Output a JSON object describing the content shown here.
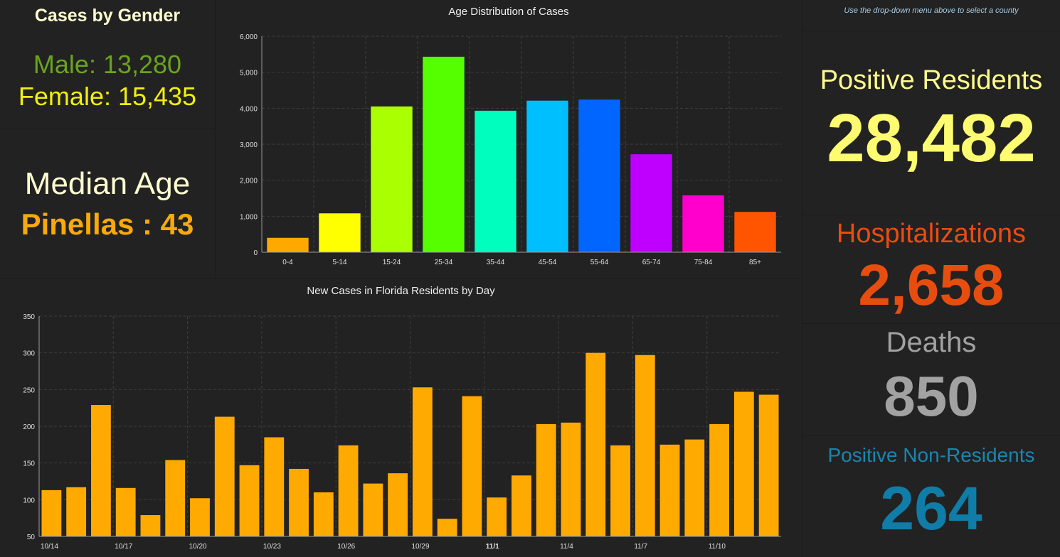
{
  "gender": {
    "title": "Cases by Gender",
    "male": "Male: 13,280",
    "female": "Female: 15,435"
  },
  "median": {
    "label": "Median Age",
    "value": "Pinellas : 43"
  },
  "age_chart": {
    "title": "Age Distribution of Cases"
  },
  "daily_chart": {
    "title": "New Cases in Florida Residents by Day"
  },
  "county_note": "Use the drop-down menu above to select a county",
  "positive": {
    "label": "Positive Residents",
    "value": "28,482"
  },
  "hospitalizations": {
    "label": "Hospitalizations",
    "value": "2,658"
  },
  "deaths": {
    "label": "Deaths",
    "value": "850"
  },
  "non_residents": {
    "label": "Positive Non-Residents",
    "value": "264"
  },
  "colors": {
    "age_bars": [
      "#ffa800",
      "#ffff00",
      "#aaff00",
      "#55ff00",
      "#00ffbf",
      "#00bfff",
      "#0066ff",
      "#bf00ff",
      "#ff00cc",
      "#ff5500"
    ],
    "daily_bars": "#ffaa00",
    "grid": "#3d3d3d",
    "axis_text": "#e0e0e0"
  },
  "chart_data": [
    {
      "type": "bar",
      "title": "Age Distribution of Cases",
      "categories": [
        "0-4",
        "5-14",
        "15-24",
        "25-34",
        "35-44",
        "45-54",
        "55-64",
        "65-74",
        "75-84",
        "85+"
      ],
      "values": [
        400,
        1080,
        4050,
        5430,
        3930,
        4210,
        4240,
        2720,
        1580,
        1120
      ],
      "ylim": [
        0,
        6000
      ],
      "yticks": [
        "0",
        "1,000",
        "2,000",
        "3,000",
        "4,000",
        "5,000",
        "6,000"
      ],
      "grid": true
    },
    {
      "type": "bar",
      "title": "New Cases in Florida Residents by Day",
      "categories": [
        "10/14",
        "10/15",
        "10/16",
        "10/17",
        "10/18",
        "10/19",
        "10/20",
        "10/21",
        "10/22",
        "10/23",
        "10/24",
        "10/25",
        "10/26",
        "10/27",
        "10/28",
        "10/29",
        "10/30",
        "10/31",
        "11/1",
        "11/2",
        "11/3",
        "11/4",
        "11/5",
        "11/6",
        "11/7",
        "11/8",
        "11/9",
        "11/10",
        "11/11",
        "11/12"
      ],
      "values": [
        113,
        117,
        229,
        116,
        79,
        154,
        102,
        213,
        147,
        185,
        142,
        110,
        174,
        122,
        136,
        253,
        74,
        241,
        103,
        133,
        203,
        205,
        300,
        174,
        297,
        175,
        182,
        203,
        247,
        243
      ],
      "xticks": [
        "10/14",
        "10/17",
        "10/20",
        "10/23",
        "10/26",
        "10/29",
        "11/1",
        "11/4",
        "11/7",
        "11/10"
      ],
      "xticks_bold": "11/1",
      "ylim": [
        50,
        350
      ],
      "yticks": [
        "50",
        "100",
        "150",
        "200",
        "250",
        "300",
        "350"
      ],
      "grid": true
    }
  ]
}
